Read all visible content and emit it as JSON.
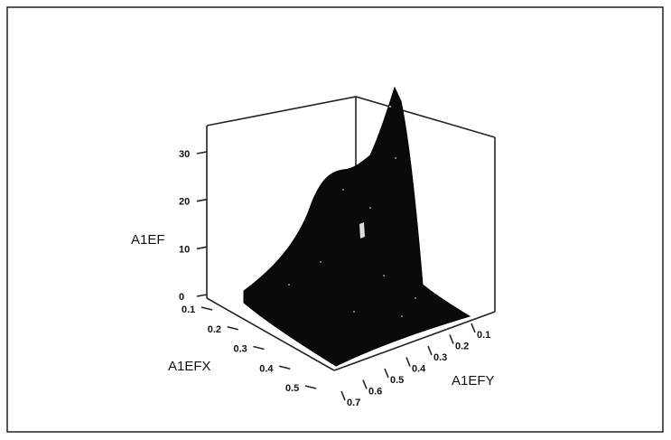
{
  "chart_data": {
    "type": "surface",
    "zlabel": "A1EF",
    "xlabel": "A1EFX",
    "ylabel": "A1EFY",
    "z_ticks": [
      "0",
      "10",
      "20",
      "30"
    ],
    "x_ticks": [
      "0.1",
      "0.2",
      "0.3",
      "0.4",
      "0.5"
    ],
    "y_ticks": [
      "0.1",
      "0.2",
      "0.3",
      "0.4",
      "0.5",
      "0.6",
      "0.7"
    ],
    "zlim": [
      0,
      35
    ],
    "xlim": [
      0.1,
      0.55
    ],
    "ylim": [
      0.1,
      0.75
    ],
    "surface_color": "#0a0a0a",
    "peak": {
      "x": 0.1,
      "y": 0.1,
      "z": 36
    },
    "grid": false
  }
}
